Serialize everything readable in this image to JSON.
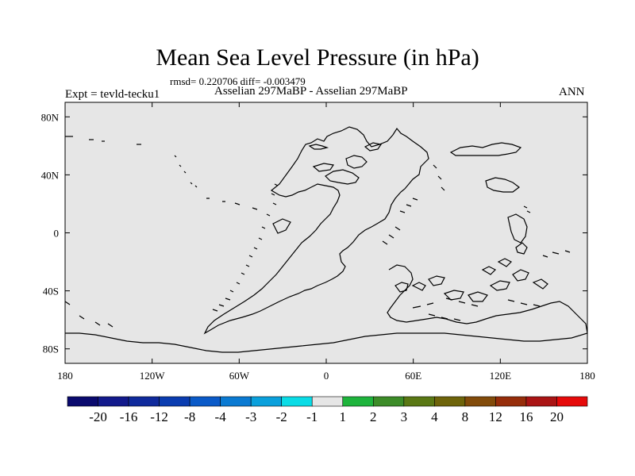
{
  "title": "Mean Sea Level Pressure (in hPa)",
  "stats": "rmsd= 0.220706 diff= -0.003479",
  "experiment": "Expt = tevld-tecku1",
  "subtitle": "Asselian 297MaBP - Asselian 297MaBP",
  "season": "ANN",
  "axes": {
    "x_ticks": [
      "180",
      "120W",
      "60W",
      "0",
      "60E",
      "120E",
      "180"
    ],
    "y_ticks": [
      "80N",
      "40N",
      "0",
      "40S",
      "80S"
    ]
  },
  "colorbar": {
    "colors": [
      "#0a0a6e",
      "#121a8c",
      "#0f2a9c",
      "#0a3cb0",
      "#0a5ac8",
      "#0a7ad2",
      "#0aa0dc",
      "#0adce6",
      "#e6e6e6",
      "#1eb43c",
      "#3c8c28",
      "#5a7814",
      "#6e640a",
      "#824b0a",
      "#962d0a",
      "#aa1414",
      "#e60a0a"
    ],
    "labels": [
      "-20",
      "-16",
      "-12",
      "-8",
      "-4",
      "-3",
      "-2",
      "-1",
      "1",
      "2",
      "3",
      "4",
      "8",
      "12",
      "16",
      "20"
    ]
  },
  "colors": {
    "plot_background": "#e6e6e6",
    "coastline": "#000000"
  }
}
